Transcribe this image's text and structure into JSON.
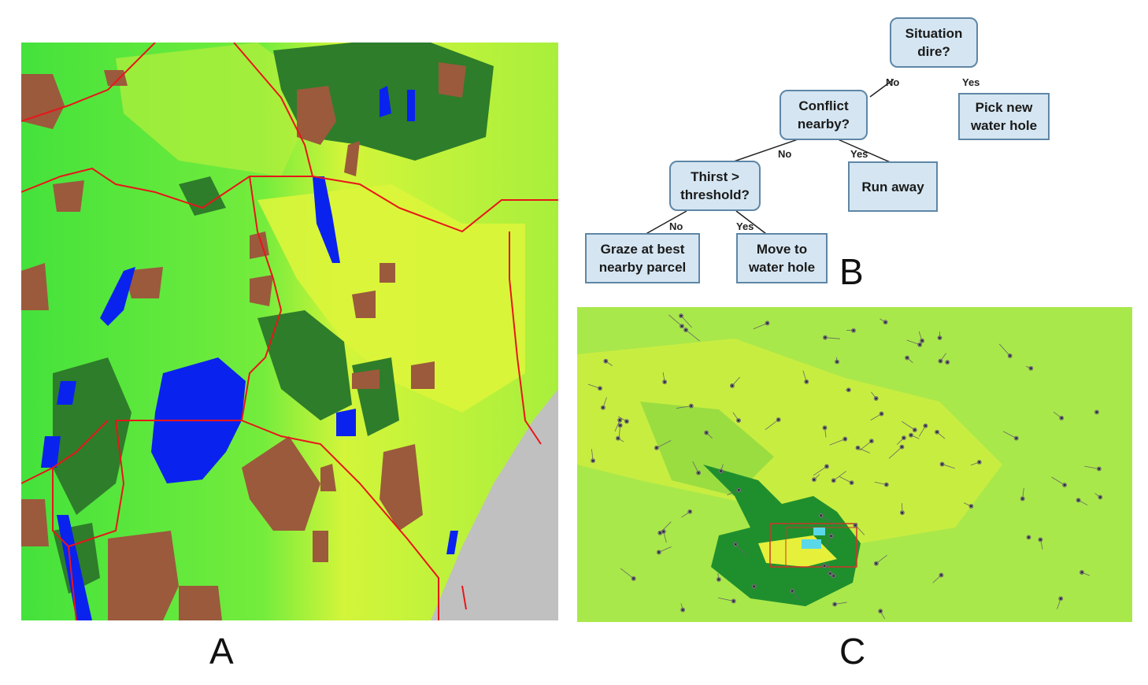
{
  "panel_labels": {
    "a": "A",
    "b": "B",
    "c": "C"
  },
  "decision_tree": {
    "nodes": {
      "situation": "Situation\ndire?",
      "pick_water": "Pick new\nwater hole",
      "conflict": "Conflict\nnearby?",
      "run_away": "Run away",
      "thirst": "Thirst >\nthreshold?",
      "graze": "Graze at best\nnearby parcel",
      "move_water": "Move to\nwater hole"
    },
    "edges": {
      "situation_no": "No",
      "situation_yes": "Yes",
      "conflict_no": "No",
      "conflict_yes": "Yes",
      "thirst_no": "No",
      "thirst_yes": "Yes"
    }
  },
  "colors": {
    "vegetation_green": "#3fe23a",
    "vegetation_yellow": "#d9f53a",
    "forest_dark": "#2e7d2a",
    "water_blue": "#0a22ee",
    "bare_brown": "#9b5a3c",
    "border_red": "#e8161a",
    "ocean_grey": "#c0c0c0",
    "node_fill": "#d5e6f2",
    "node_border": "#5f86a6"
  }
}
